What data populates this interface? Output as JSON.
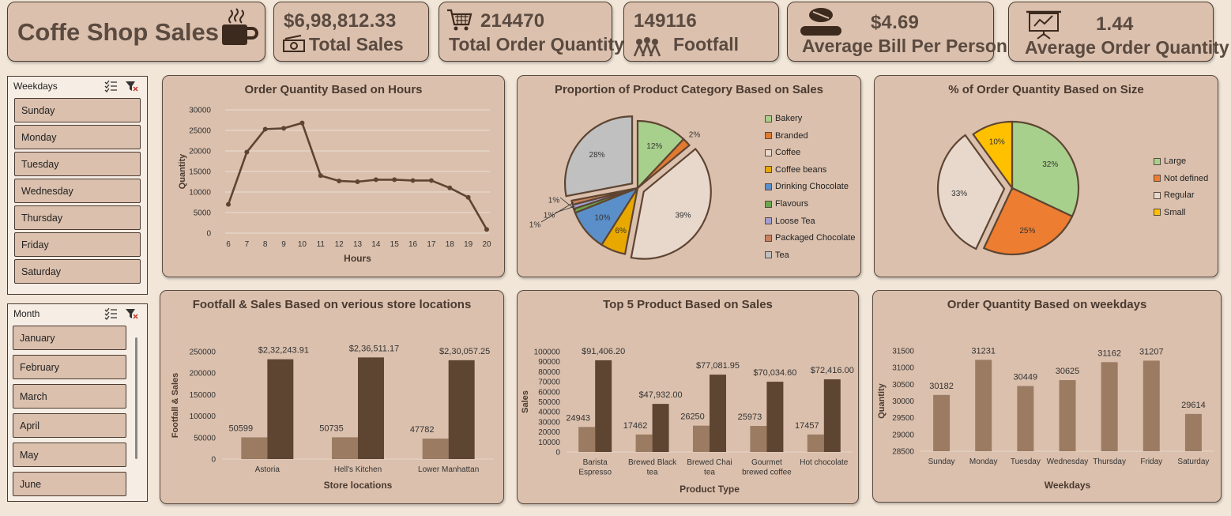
{
  "header": {
    "title": "Coffe Shop Sales",
    "total_sales_value": "$6,98,812.33",
    "total_sales_label": "Total Sales",
    "total_qty_value": "214470",
    "total_qty_label": "Total Order Quantity",
    "footfall_value": "149116",
    "footfall_label": "Footfall",
    "avg_bill_value": "$4.69",
    "avg_bill_label": "Average Bill Per Person",
    "avg_qty_value": "1.44",
    "avg_qty_label": "Average Order Quantity"
  },
  "weekday_slicer": {
    "title": "Weekdays",
    "items": [
      "Sunday",
      "Monday",
      "Tuesday",
      "Wednesday",
      "Thursday",
      "Friday",
      "Saturday"
    ]
  },
  "month_slicer": {
    "title": "Month",
    "items": [
      "January",
      "February",
      "March",
      "April",
      "May",
      "June"
    ]
  },
  "colors": {
    "bar_light": "#9b7b62",
    "bar_dark": "#5e4532",
    "line": "#5e4532"
  },
  "chart_data": [
    {
      "type": "line",
      "title": "Order Quantity Based on Hours",
      "xlabel": "Hours",
      "ylabel": "Quantity",
      "x": [
        6,
        7,
        8,
        9,
        10,
        11,
        12,
        13,
        14,
        15,
        16,
        17,
        18,
        19,
        20
      ],
      "values": [
        7000,
        19700,
        25300,
        25500,
        26800,
        14000,
        12700,
        12500,
        13000,
        13000,
        12800,
        12800,
        11000,
        8700,
        900
      ],
      "ylim": [
        0,
        30000
      ],
      "yticks": [
        0,
        5000,
        10000,
        15000,
        20000,
        25000,
        30000
      ]
    },
    {
      "type": "pie",
      "title": "Proportion of Product Category Based on Sales",
      "labels": [
        "Bakery",
        "Branded",
        "Coffee",
        "Coffee beans",
        "Drinking Chocolate",
        "Flavours",
        "Loose Tea",
        "Packaged Chocolate",
        "Tea"
      ],
      "values": [
        12,
        2,
        39,
        6,
        10,
        1,
        1,
        1,
        28
      ],
      "value_labels": [
        "12%",
        "2%",
        "39%",
        "6%",
        "10%",
        "1%",
        "1%",
        "1%",
        "28%"
      ],
      "colors": [
        "#a8d08d",
        "#e07a30",
        "#e8d8cc",
        "#e8a800",
        "#5b8fc9",
        "#6aa84f",
        "#a0a0d0",
        "#c9825f",
        "#c0c0c0"
      ]
    },
    {
      "type": "pie",
      "title": "% of Order Quantity Based on Size",
      "labels": [
        "Large",
        "Not defined",
        "Regular",
        "Small"
      ],
      "values": [
        32,
        25,
        33,
        10
      ],
      "value_labels": [
        "32%",
        "25%",
        "33%",
        "10%"
      ],
      "colors": [
        "#a8d08d",
        "#ed7d31",
        "#e8d8cc",
        "#ffc000"
      ]
    },
    {
      "type": "bar",
      "title": "Footfall & Sales Based on verious store locations",
      "xlabel": "Store locations",
      "ylabel": "Footfall & Sales",
      "categories": [
        "Astoria",
        "Hell's Kitchen",
        "Lower Manhattan"
      ],
      "series": [
        {
          "values": [
            50599,
            50735,
            47782
          ],
          "labels": [
            "50599",
            "50735",
            "47782"
          ]
        },
        {
          "values": [
            232243.91,
            236511.17,
            230057.25
          ],
          "labels": [
            "$2,32,243.91",
            "$2,36,511.17",
            "$2,30,057.25"
          ]
        }
      ],
      "ylim": [
        0,
        250000
      ],
      "yticks": [
        0,
        50000,
        100000,
        150000,
        200000,
        250000
      ]
    },
    {
      "type": "bar",
      "title": "Top 5 Product Based on Sales",
      "xlabel": "Product Type",
      "ylabel": "Sales",
      "categories": [
        [
          "Barista",
          "Espresso"
        ],
        [
          "Brewed Black",
          "tea"
        ],
        [
          "Brewed Chai",
          "tea"
        ],
        [
          "Gourmet",
          "brewed coffee"
        ],
        [
          "Hot chocolate"
        ]
      ],
      "series": [
        {
          "values": [
            24943,
            17462,
            26250,
            25973,
            17457
          ],
          "labels": [
            "24943",
            "17462",
            "26250",
            "25973",
            "17457"
          ]
        },
        {
          "values": [
            91406.2,
            47932,
            77081.95,
            70034.6,
            72416
          ],
          "labels": [
            "$91,406.20",
            "$47,932.00",
            "$77,081.95",
            "$70,034.60",
            "$72,416.00"
          ]
        }
      ],
      "ylim": [
        0,
        100000
      ],
      "yticks": [
        0,
        10000,
        20000,
        30000,
        40000,
        50000,
        60000,
        70000,
        80000,
        90000,
        100000
      ]
    },
    {
      "type": "bar",
      "title": "Order Quantity Based on weekdays",
      "xlabel": "Weekdays",
      "ylabel": "Quantity",
      "categories": [
        "Sunday",
        "Monday",
        "Tuesday",
        "Wednesday",
        "Thursday",
        "Friday",
        "Saturday"
      ],
      "values": [
        30182,
        31231,
        30449,
        30625,
        31162,
        31207,
        29614
      ],
      "labels": [
        "30182",
        "31231",
        "30449",
        "30625",
        "31162",
        "31207",
        "29614"
      ],
      "ylim": [
        28500,
        31500
      ],
      "yticks": [
        28500,
        29000,
        29500,
        30000,
        30500,
        31000,
        31500
      ]
    }
  ]
}
